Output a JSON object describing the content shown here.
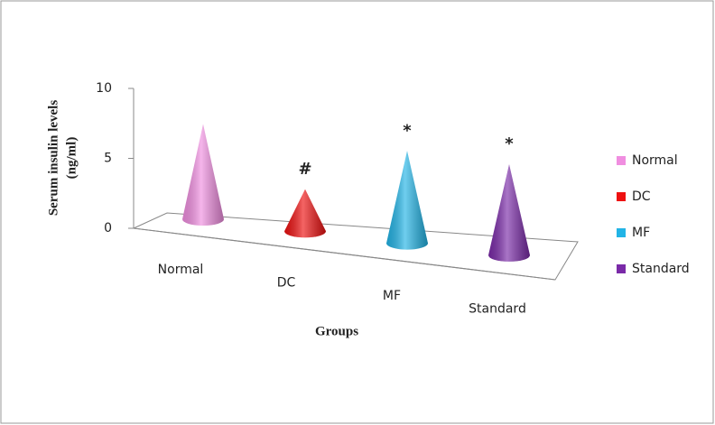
{
  "chart_data": {
    "type": "cone",
    "y_label_lines": [
      "Serum insulin levels",
      "(ng/ml)"
    ],
    "x_label": "Groups",
    "categories": [
      "Normal",
      "DC",
      "MF",
      "Standard"
    ],
    "values": [
      6.8,
      3,
      6.6,
      6.5
    ],
    "value_annotations": [
      null,
      "#",
      "*",
      "*"
    ],
    "colors": [
      "#f08ee0",
      "#ee1111",
      "#22b4e6",
      "#7a2aa8"
    ],
    "ylim": [
      0,
      10
    ],
    "yticks": [
      0,
      5,
      10
    ],
    "legend": "right"
  }
}
